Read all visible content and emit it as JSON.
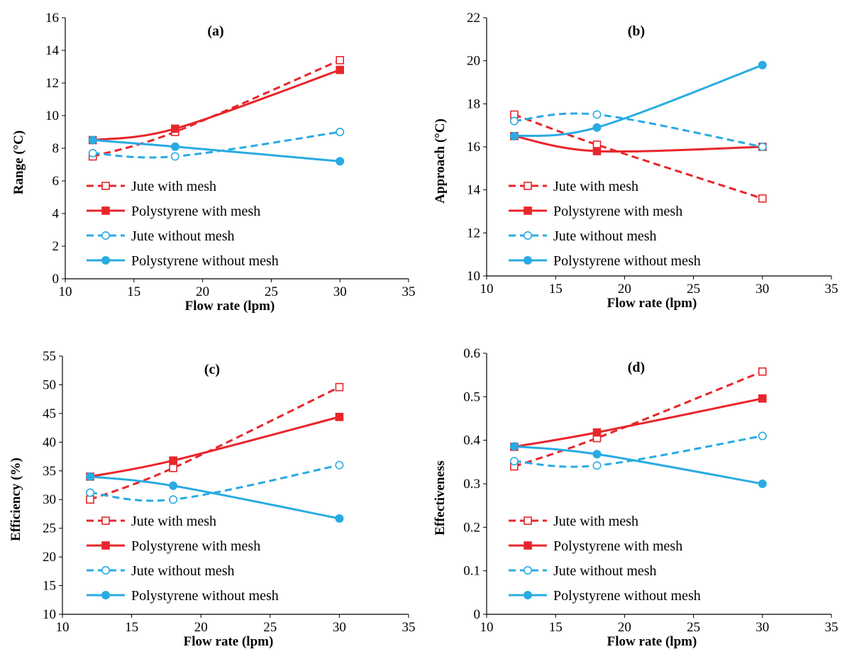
{
  "chart_data": [
    {
      "type": "line",
      "title": "(a)",
      "xlabel": "Flow rate (lpm)",
      "ylabel": "Range (°C)",
      "xlim": [
        10,
        35
      ],
      "ylim": [
        0,
        16
      ],
      "xticks": [
        "10",
        "15",
        "20",
        "25",
        "30",
        "35"
      ],
      "yticks": [
        "0",
        "2",
        "4",
        "6",
        "8",
        "10",
        "12",
        "14",
        "16"
      ],
      "grid": false,
      "legend": "lower-left",
      "x": [
        12,
        18,
        30
      ],
      "series": [
        {
          "name": "Jute with mesh",
          "values": [
            7.5,
            9.0,
            13.4
          ],
          "color": "#e8262b",
          "dash": true,
          "marker": "square-open"
        },
        {
          "name": "Polystyrene with mesh",
          "values": [
            8.5,
            9.2,
            12.8
          ],
          "color": "#e8262b",
          "dash": false,
          "marker": "square-filled"
        },
        {
          "name": "Jute without mesh",
          "values": [
            7.7,
            7.5,
            9.0
          ],
          "color": "#29abe2",
          "dash": true,
          "marker": "circle-open"
        },
        {
          "name": "Polystyrene without mesh",
          "values": [
            8.5,
            8.1,
            7.2
          ],
          "color": "#29abe2",
          "dash": false,
          "marker": "circle-filled"
        }
      ]
    },
    {
      "type": "line",
      "title": "(b)",
      "xlabel": "Flow rate (lpm)",
      "ylabel": "Approach (°C)",
      "xlim": [
        10,
        35
      ],
      "ylim": [
        10,
        22
      ],
      "xticks": [
        "10",
        "15",
        "20",
        "25",
        "30",
        "35"
      ],
      "yticks": [
        "10",
        "12",
        "14",
        "16",
        "18",
        "20",
        "22"
      ],
      "grid": false,
      "legend": "lower-left",
      "x": [
        12,
        18,
        30
      ],
      "series": [
        {
          "name": "Jute with mesh",
          "values": [
            17.5,
            16.1,
            13.6
          ],
          "color": "#e8262b",
          "dash": true,
          "marker": "square-open"
        },
        {
          "name": "Polystyrene with mesh",
          "values": [
            16.5,
            15.8,
            16.0
          ],
          "color": "#e8262b",
          "dash": false,
          "marker": "square-filled"
        },
        {
          "name": "Jute without mesh",
          "values": [
            17.2,
            17.5,
            16.0
          ],
          "color": "#29abe2",
          "dash": true,
          "marker": "circle-open"
        },
        {
          "name": "Polystyrene without mesh",
          "values": [
            16.5,
            16.9,
            19.8
          ],
          "color": "#29abe2",
          "dash": false,
          "marker": "circle-filled"
        }
      ]
    },
    {
      "type": "line",
      "title": "(c)",
      "xlabel": "Flow rate (lpm)",
      "ylabel": "Efficiency (%)",
      "xlim": [
        10,
        35
      ],
      "ylim": [
        10,
        55
      ],
      "xticks": [
        "10",
        "15",
        "20",
        "25",
        "30",
        "35"
      ],
      "yticks": [
        "10",
        "15",
        "20",
        "25",
        "30",
        "35",
        "40",
        "45",
        "50",
        "55"
      ],
      "grid": false,
      "legend": "lower-left",
      "x": [
        12,
        18,
        30
      ],
      "series": [
        {
          "name": "Jute with mesh",
          "values": [
            30.0,
            35.5,
            49.6
          ],
          "color": "#e8262b",
          "dash": true,
          "marker": "square-open"
        },
        {
          "name": "Polystyrene with mesh",
          "values": [
            34.0,
            36.8,
            44.4
          ],
          "color": "#e8262b",
          "dash": false,
          "marker": "square-filled"
        },
        {
          "name": "Jute without mesh",
          "values": [
            31.2,
            30.0,
            36.0
          ],
          "color": "#29abe2",
          "dash": true,
          "marker": "circle-open"
        },
        {
          "name": "Polystyrene without mesh",
          "values": [
            34.0,
            32.4,
            26.7
          ],
          "color": "#29abe2",
          "dash": false,
          "marker": "circle-filled"
        }
      ]
    },
    {
      "type": "line",
      "title": "(d)",
      "xlabel": "Flow rate (lpm)",
      "ylabel": "Effectiveness",
      "xlim": [
        10,
        35
      ],
      "ylim": [
        0,
        0.6
      ],
      "xticks": [
        "10",
        "15",
        "20",
        "25",
        "30",
        "35"
      ],
      "yticks": [
        "0",
        "0.1",
        "0.2",
        "0.3",
        "0.4",
        "0.5",
        "0.6"
      ],
      "grid": false,
      "legend": "lower-left",
      "x": [
        12,
        18,
        30
      ],
      "series": [
        {
          "name": "Jute with mesh",
          "values": [
            0.34,
            0.405,
            0.558
          ],
          "color": "#e8262b",
          "dash": true,
          "marker": "square-open"
        },
        {
          "name": "Polystyrene with mesh",
          "values": [
            0.385,
            0.418,
            0.496
          ],
          "color": "#e8262b",
          "dash": false,
          "marker": "square-filled"
        },
        {
          "name": "Jute without mesh",
          "values": [
            0.352,
            0.342,
            0.41
          ],
          "color": "#29abe2",
          "dash": true,
          "marker": "circle-open"
        },
        {
          "name": "Polystyrene without mesh",
          "values": [
            0.386,
            0.368,
            0.3
          ],
          "color": "#29abe2",
          "dash": false,
          "marker": "circle-filled"
        }
      ]
    }
  ]
}
